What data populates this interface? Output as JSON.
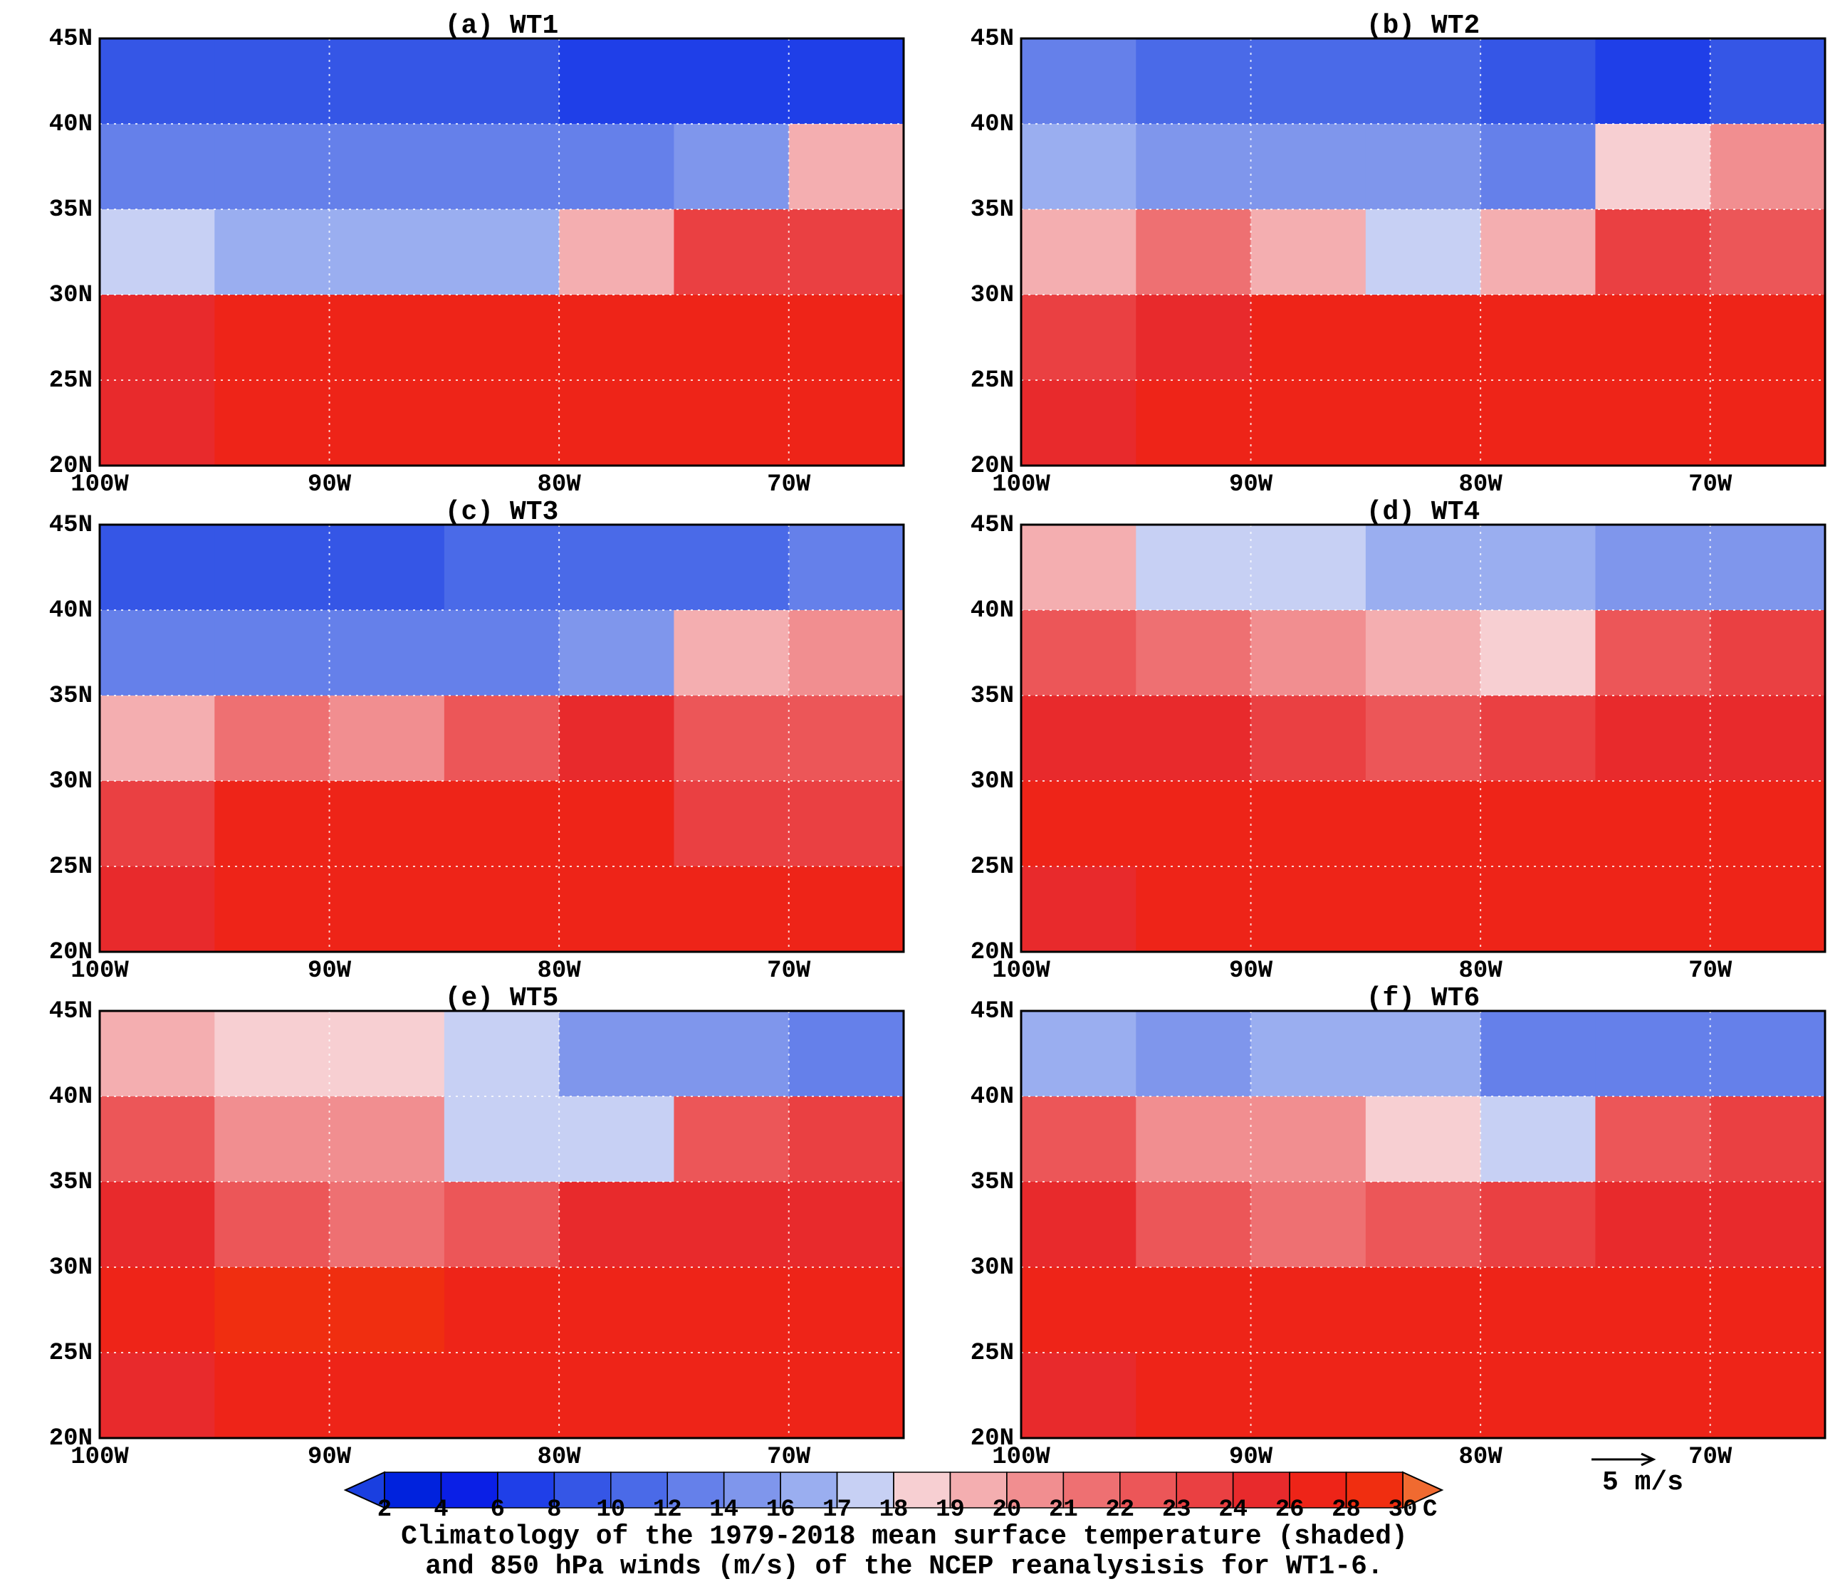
{
  "chart_data": [
    {
      "type": "heatmap",
      "title": "(a)  WT1",
      "x": [
        -97.5,
        -92.5,
        -87.5,
        -82.5,
        -77.5,
        -72.5,
        -67.5
      ],
      "y": [
        42.5,
        37.5,
        32.5,
        27.5,
        22.5
      ],
      "values": [
        [
          8,
          8,
          8,
          8,
          6,
          6,
          6
        ],
        [
          13,
          12,
          12,
          12,
          12,
          15,
          19
        ],
        [
          17,
          16,
          16,
          16,
          19,
          23,
          23
        ],
        [
          24,
          26,
          26,
          26,
          26,
          26,
          26
        ],
        [
          24,
          26,
          26,
          26,
          26,
          26,
          26
        ]
      ],
      "xlim": [
        -100,
        -65
      ],
      "ylim": [
        20,
        45
      ],
      "xticks": [
        {
          "value": -100,
          "label": "100W"
        },
        {
          "value": -90,
          "label": "90W"
        },
        {
          "value": -80,
          "label": "80W"
        },
        {
          "value": -70,
          "label": "70W"
        }
      ],
      "yticks": [
        {
          "value": 45,
          "label": "45N"
        },
        {
          "value": 40,
          "label": "40N"
        },
        {
          "value": 35,
          "label": "35N"
        },
        {
          "value": 30,
          "label": "30N"
        },
        {
          "value": 25,
          "label": "25N"
        },
        {
          "value": 20,
          "label": "20N"
        }
      ]
    },
    {
      "type": "heatmap",
      "title": "(b)  WT2",
      "x": [
        -97.5,
        -92.5,
        -87.5,
        -82.5,
        -77.5,
        -72.5,
        -67.5
      ],
      "y": [
        42.5,
        37.5,
        32.5,
        27.5,
        22.5
      ],
      "values": [
        [
          12,
          10,
          10,
          10,
          8,
          6,
          8
        ],
        [
          16,
          14,
          14,
          14,
          13,
          18,
          20
        ],
        [
          19,
          21,
          19,
          17,
          19,
          23,
          22
        ],
        [
          23,
          25,
          26,
          26,
          26,
          26,
          26
        ],
        [
          24,
          26,
          26,
          26,
          26,
          26,
          26
        ]
      ],
      "xlim": [
        -100,
        -65
      ],
      "ylim": [
        20,
        45
      ],
      "xticks": [
        {
          "value": -100,
          "label": "100W"
        },
        {
          "value": -90,
          "label": "90W"
        },
        {
          "value": -80,
          "label": "80W"
        },
        {
          "value": -70,
          "label": "70W"
        }
      ],
      "yticks": [
        {
          "value": 45,
          "label": "45N"
        },
        {
          "value": 40,
          "label": "40N"
        },
        {
          "value": 35,
          "label": "35N"
        },
        {
          "value": 30,
          "label": "30N"
        },
        {
          "value": 25,
          "label": "25N"
        },
        {
          "value": 20,
          "label": "20N"
        }
      ]
    },
    {
      "type": "heatmap",
      "title": "(c)  WT3",
      "x": [
        -97.5,
        -92.5,
        -87.5,
        -82.5,
        -77.5,
        -72.5,
        -67.5
      ],
      "y": [
        42.5,
        37.5,
        32.5,
        27.5,
        22.5
      ],
      "values": [
        [
          8,
          8,
          8,
          10,
          10,
          10,
          12
        ],
        [
          13,
          13,
          13,
          13,
          15,
          19,
          20
        ],
        [
          19,
          21,
          20,
          22,
          24,
          22,
          22
        ],
        [
          23,
          26,
          26,
          26,
          26,
          23,
          23
        ],
        [
          24,
          26,
          26,
          26,
          26,
          26,
          26
        ]
      ],
      "xlim": [
        -100,
        -65
      ],
      "ylim": [
        20,
        45
      ],
      "xticks": [
        {
          "value": -100,
          "label": "100W"
        },
        {
          "value": -90,
          "label": "90W"
        },
        {
          "value": -80,
          "label": "80W"
        },
        {
          "value": -70,
          "label": "70W"
        }
      ],
      "yticks": [
        {
          "value": 45,
          "label": "45N"
        },
        {
          "value": 40,
          "label": "40N"
        },
        {
          "value": 35,
          "label": "35N"
        },
        {
          "value": 30,
          "label": "30N"
        },
        {
          "value": 25,
          "label": "25N"
        },
        {
          "value": 20,
          "label": "20N"
        }
      ]
    },
    {
      "type": "heatmap",
      "title": "(d)  WT4",
      "x": [
        -97.5,
        -92.5,
        -87.5,
        -82.5,
        -77.5,
        -72.5,
        -67.5
      ],
      "y": [
        42.5,
        37.5,
        32.5,
        27.5,
        22.5
      ],
      "values": [
        [
          19,
          17,
          17,
          16,
          16,
          14,
          14
        ],
        [
          22,
          21,
          20,
          19,
          18,
          22,
          23
        ],
        [
          24,
          24,
          23,
          22,
          23,
          24,
          24
        ],
        [
          26,
          26,
          26,
          26,
          26,
          26,
          26
        ],
        [
          24,
          26,
          26,
          26,
          26,
          26,
          26
        ]
      ],
      "xlim": [
        -100,
        -65
      ],
      "ylim": [
        20,
        45
      ],
      "xticks": [
        {
          "value": -100,
          "label": "100W"
        },
        {
          "value": -90,
          "label": "90W"
        },
        {
          "value": -80,
          "label": "80W"
        },
        {
          "value": -70,
          "label": "70W"
        }
      ],
      "yticks": [
        {
          "value": 45,
          "label": "45N"
        },
        {
          "value": 40,
          "label": "40N"
        },
        {
          "value": 35,
          "label": "35N"
        },
        {
          "value": 30,
          "label": "30N"
        },
        {
          "value": 25,
          "label": "25N"
        },
        {
          "value": 20,
          "label": "20N"
        }
      ]
    },
    {
      "type": "heatmap",
      "title": "(e)  WT5",
      "x": [
        -97.5,
        -92.5,
        -87.5,
        -82.5,
        -77.5,
        -72.5,
        -67.5
      ],
      "y": [
        42.5,
        37.5,
        32.5,
        27.5,
        22.5
      ],
      "values": [
        [
          19,
          18,
          18,
          17,
          14,
          14,
          13
        ],
        [
          22,
          20,
          20,
          17,
          17,
          22,
          23
        ],
        [
          24,
          22,
          21,
          22,
          24,
          24,
          24
        ],
        [
          26,
          28,
          28,
          26,
          26,
          26,
          26
        ],
        [
          24,
          26,
          26,
          26,
          26,
          26,
          26
        ]
      ],
      "xlim": [
        -100,
        -65
      ],
      "ylim": [
        20,
        45
      ],
      "xticks": [
        {
          "value": -100,
          "label": "100W"
        },
        {
          "value": -90,
          "label": "90W"
        },
        {
          "value": -80,
          "label": "80W"
        },
        {
          "value": -70,
          "label": "70W"
        }
      ],
      "yticks": [
        {
          "value": 45,
          "label": "45N"
        },
        {
          "value": 40,
          "label": "40N"
        },
        {
          "value": 35,
          "label": "35N"
        },
        {
          "value": 30,
          "label": "30N"
        },
        {
          "value": 25,
          "label": "25N"
        },
        {
          "value": 20,
          "label": "20N"
        }
      ]
    },
    {
      "type": "heatmap",
      "title": "(f)  WT6",
      "x": [
        -97.5,
        -92.5,
        -87.5,
        -82.5,
        -77.5,
        -72.5,
        -67.5
      ],
      "y": [
        42.5,
        37.5,
        32.5,
        27.5,
        22.5
      ],
      "values": [
        [
          16,
          14,
          16,
          16,
          13,
          12,
          12
        ],
        [
          22,
          20,
          20,
          18,
          17,
          22,
          23
        ],
        [
          24,
          22,
          21,
          22,
          23,
          24,
          24
        ],
        [
          26,
          26,
          26,
          26,
          26,
          26,
          26
        ],
        [
          24,
          26,
          26,
          26,
          26,
          26,
          26
        ]
      ],
      "xlim": [
        -100,
        -65
      ],
      "ylim": [
        20,
        45
      ],
      "xticks": [
        {
          "value": -100,
          "label": "100W"
        },
        {
          "value": -90,
          "label": "90W"
        },
        {
          "value": -80,
          "label": "80W"
        },
        {
          "value": -70,
          "label": "70W"
        }
      ],
      "yticks": [
        {
          "value": 45,
          "label": "45N"
        },
        {
          "value": 40,
          "label": "40N"
        },
        {
          "value": 35,
          "label": "35N"
        },
        {
          "value": 30,
          "label": "30N"
        },
        {
          "value": 25,
          "label": "25N"
        },
        {
          "value": 20,
          "label": "20N"
        }
      ]
    }
  ],
  "colorbar": {
    "ticks": [
      2,
      4,
      6,
      8,
      10,
      12,
      14,
      16,
      17,
      18,
      19,
      20,
      21,
      22,
      23,
      24,
      26,
      28,
      30
    ],
    "unit": "C",
    "colors": [
      "#1a3fe0",
      "#0022dd",
      "#0a1fe6",
      "#1f3fe8",
      "#3556e6",
      "#4a6ae8",
      "#6580ea",
      "#7f96ec",
      "#9aaef0",
      "#c7d0f4",
      "#f7cfd2",
      "#f4aeb0",
      "#f18e90",
      "#ee7072",
      "#ec5658",
      "#ea4042",
      "#e82a2c",
      "#ee2418",
      "#f02e10",
      "#f06a30"
    ]
  },
  "vector_reference": "5 m/s",
  "caption": [
    "Climatology of the 1979-2018 mean surface temperature (shaded)",
    "and 850 hPa winds (m/s) of the NCEP reanalysisis for WT1-6."
  ]
}
